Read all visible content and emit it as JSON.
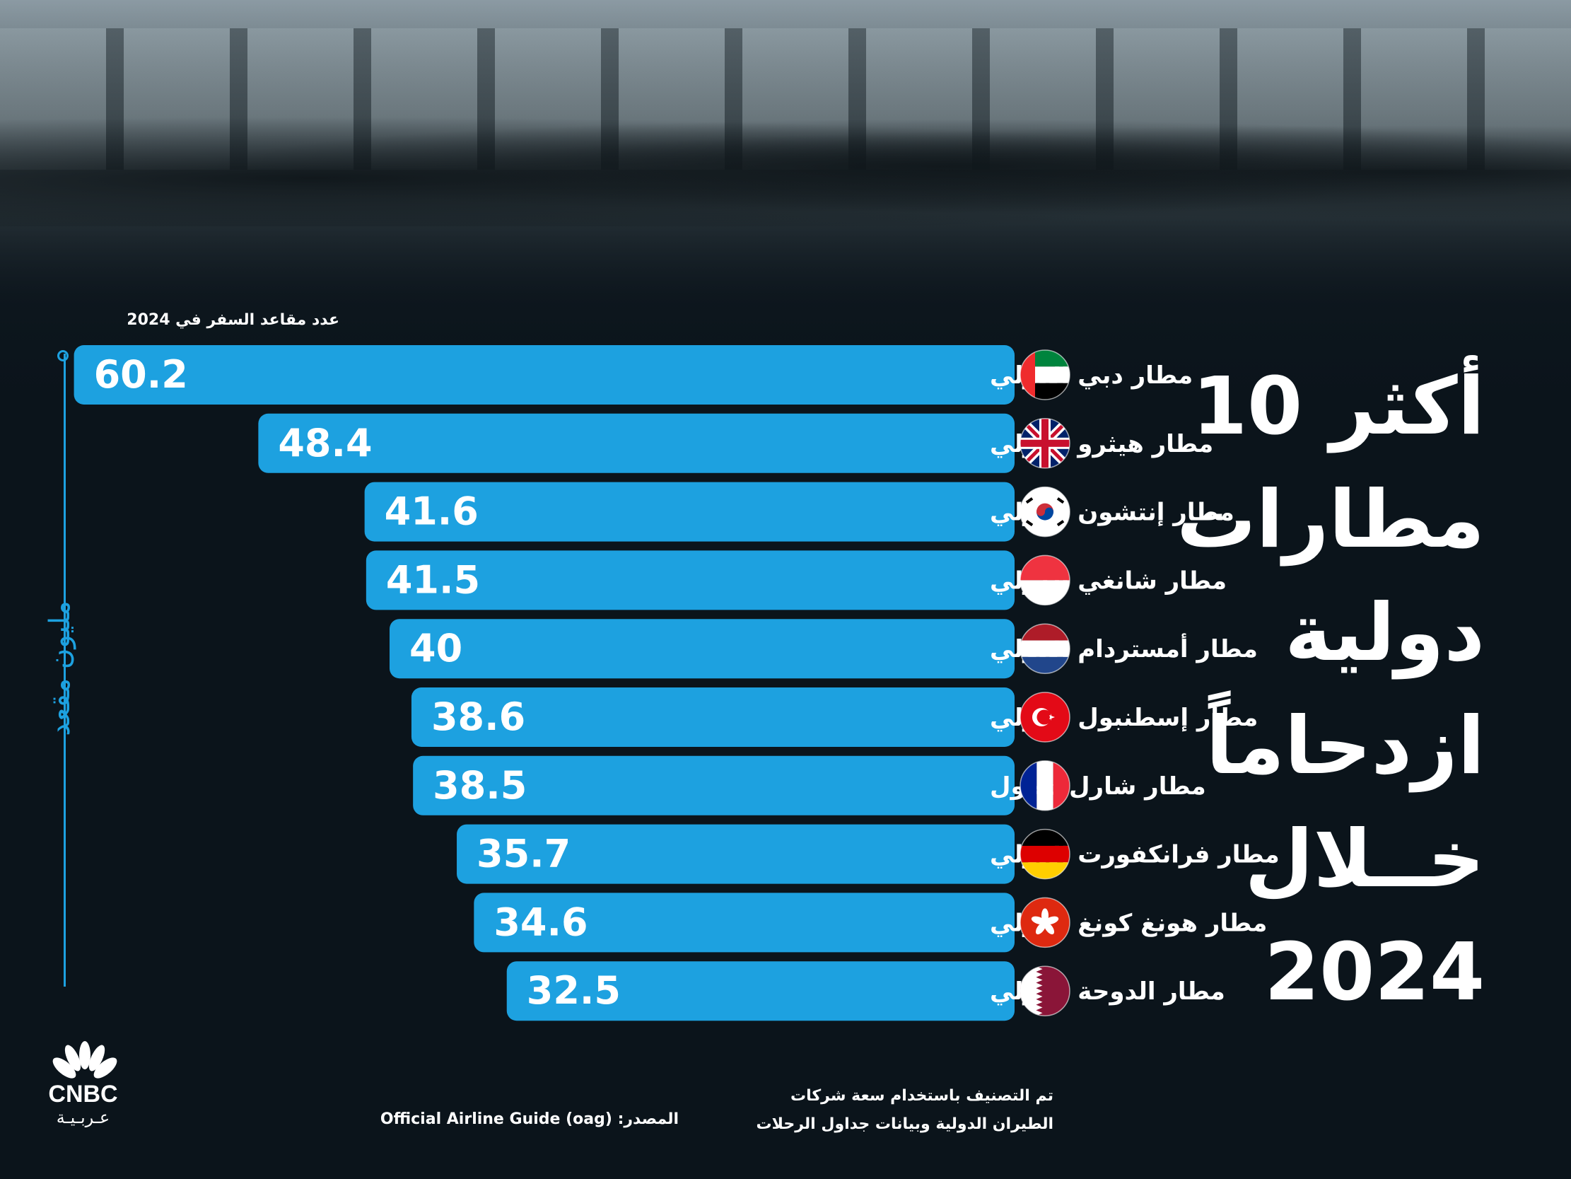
{
  "title_lines": [
    "أكثر 10",
    "مطارات",
    "دولية",
    "ازدحاماً",
    "خــلال",
    "2024"
  ],
  "subtitle": "عدد مقاعد السفر في 2024",
  "unit_label": "مليون مقعد",
  "footnote_lines": [
    "تم التصنيف باستخدام سعة شركات",
    "الطيران الدولية وبيانات جداول الرحلات"
  ],
  "source_label": "المصدر:",
  "source_value": "Official Airline Guide (oag)",
  "logo": {
    "name": "CNBC",
    "sub": "عـربـيـة"
  },
  "colors": {
    "bar": "#1da1e0",
    "background": "#0b141b",
    "text": "#ffffff"
  },
  "chart_data": {
    "type": "bar",
    "orientation": "horizontal",
    "categories": [
      "مطار دبي الدولي",
      "مطار هيثرو الدولي",
      "مطار إنتشون الدولي",
      "مطار شانغي الدولي",
      "مطار أمستردام الدولي",
      "مطار إسطنبول الدولي",
      "مطار شارل ديغول",
      "مطار فرانكفورت الدولي",
      "مطار هونغ كونغ الدولي",
      "مطار الدوحة الدولي"
    ],
    "values": [
      60.2,
      48.4,
      41.6,
      41.5,
      40,
      38.6,
      38.5,
      35.7,
      34.6,
      32.5
    ],
    "value_labels": [
      "60.2",
      "48.4",
      "41.6",
      "41.5",
      "40",
      "38.6",
      "38.5",
      "35.7",
      "34.6",
      "32.5"
    ],
    "flags": [
      "uae-flag-icon",
      "uk-flag-icon",
      "south-korea-flag-icon",
      "singapore-flag-icon",
      "netherlands-flag-icon",
      "turkey-flag-icon",
      "france-flag-icon",
      "germany-flag-icon",
      "hong-kong-flag-icon",
      "qatar-flag-icon"
    ],
    "title": "أكثر 10 مطارات دولية ازدحاماً خــلال 2024",
    "xlabel": "",
    "ylabel": "مليون مقعد"
  }
}
